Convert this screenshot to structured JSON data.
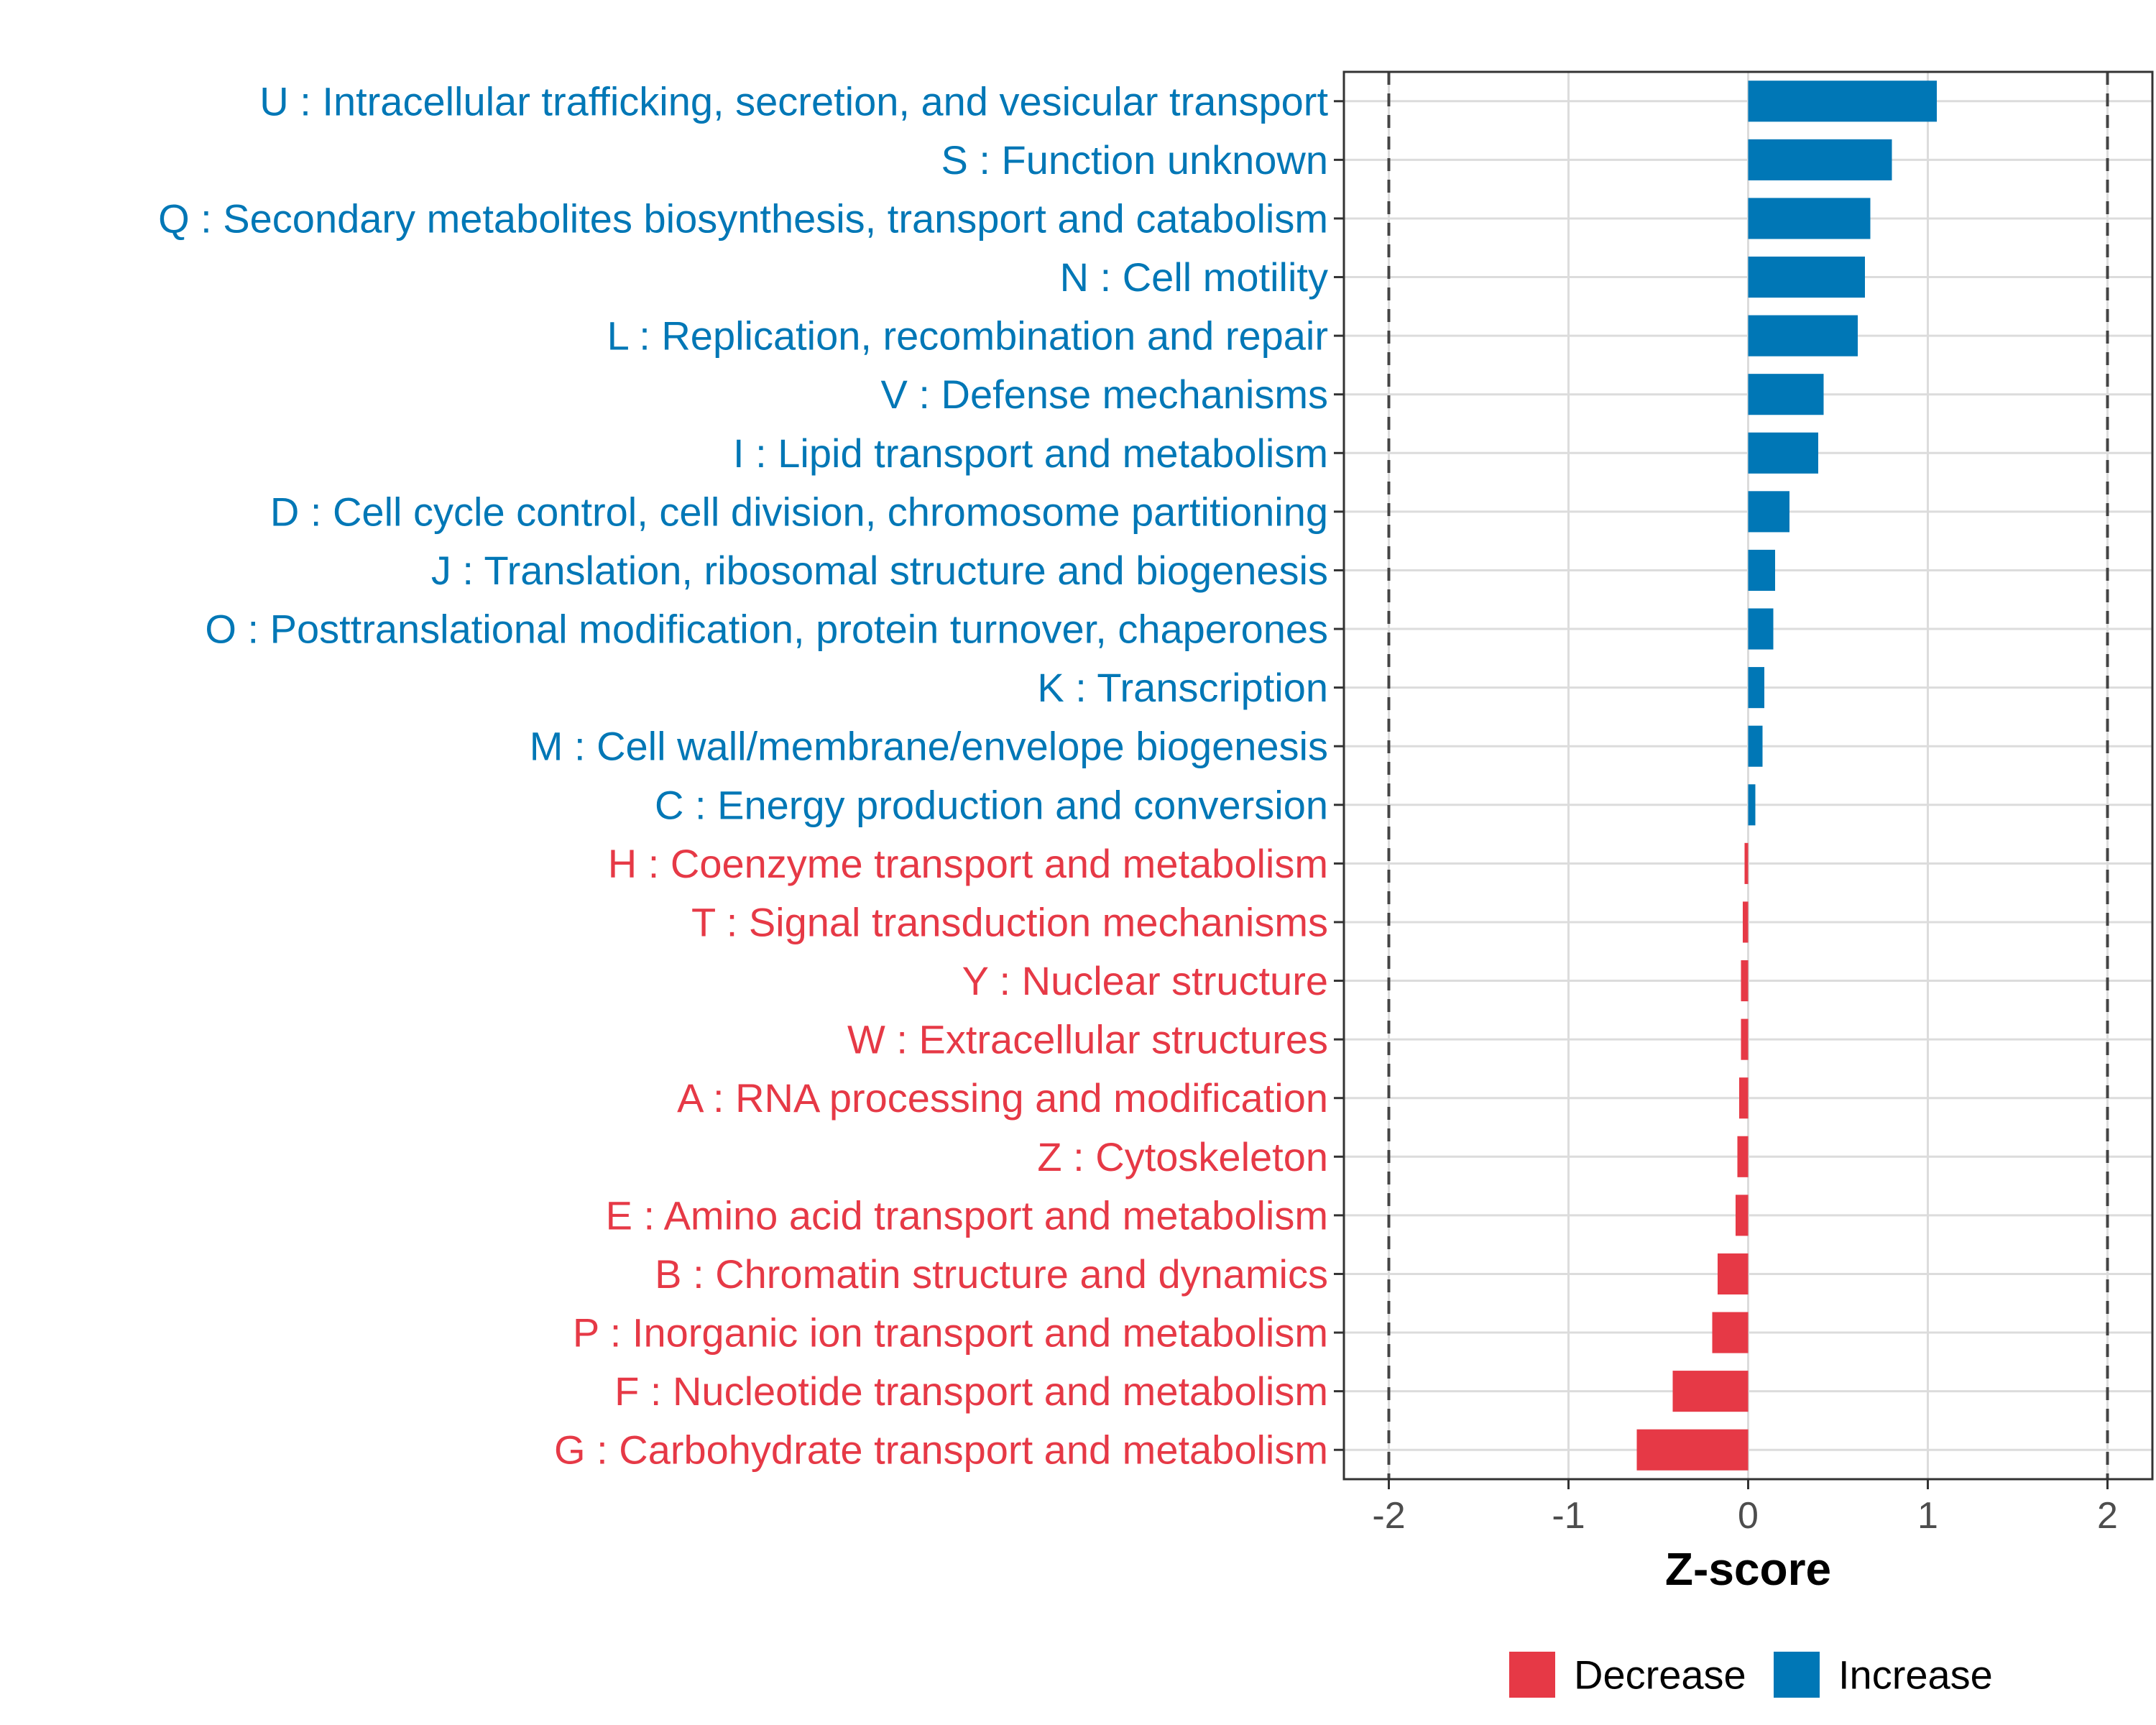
{
  "chart_data": {
    "type": "bar",
    "orientation": "horizontal",
    "title": "",
    "xlabel": "Z-score",
    "ylabel": "",
    "xlim": [
      -2.25,
      2.25
    ],
    "xticks": [
      -2,
      -1,
      0,
      1,
      2
    ],
    "xtick_labels": [
      "-2",
      "-1",
      "0",
      "1",
      "2"
    ],
    "reference_lines": [
      -2,
      2
    ],
    "grid": true,
    "legend_position": "bottom",
    "colors": {
      "Decrease": "#e63946",
      "Increase": "#0077b6"
    },
    "legend": [
      {
        "name": "Decrease",
        "color": "#e63946"
      },
      {
        "name": "Increase",
        "color": "#0077b6"
      }
    ],
    "categories": [
      "U : Intracellular trafficking, secretion, and vesicular transport",
      "S : Function unknown",
      "Q : Secondary metabolites biosynthesis, transport and catabolism",
      "N : Cell motility",
      "L : Replication, recombination and repair",
      "V : Defense mechanisms",
      "I : Lipid transport and metabolism",
      "D : Cell cycle control, cell division, chromosome partitioning",
      "J : Translation, ribosomal structure and biogenesis",
      "O : Posttranslational modification, protein turnover, chaperones",
      "K : Transcription",
      "M : Cell wall/membrane/envelope biogenesis",
      "C : Energy production and conversion",
      "H : Coenzyme transport and metabolism",
      "T : Signal transduction mechanisms",
      "Y : Nuclear structure",
      "W : Extracellular structures",
      "A : RNA processing and modification",
      "Z : Cytoskeleton",
      "E : Amino acid transport and metabolism",
      "B : Chromatin structure and dynamics",
      "P : Inorganic ion transport and metabolism",
      "F : Nucleotide transport and metabolism",
      "G : Carbohydrate transport and metabolism"
    ],
    "values": [
      1.05,
      0.8,
      0.68,
      0.65,
      0.61,
      0.42,
      0.39,
      0.23,
      0.15,
      0.14,
      0.09,
      0.08,
      0.04,
      -0.02,
      -0.03,
      -0.04,
      -0.04,
      -0.05,
      -0.06,
      -0.07,
      -0.17,
      -0.2,
      -0.42,
      -0.62
    ],
    "groups": [
      "Increase",
      "Increase",
      "Increase",
      "Increase",
      "Increase",
      "Increase",
      "Increase",
      "Increase",
      "Increase",
      "Increase",
      "Increase",
      "Increase",
      "Increase",
      "Decrease",
      "Decrease",
      "Decrease",
      "Decrease",
      "Decrease",
      "Decrease",
      "Decrease",
      "Decrease",
      "Decrease",
      "Decrease",
      "Decrease"
    ]
  }
}
